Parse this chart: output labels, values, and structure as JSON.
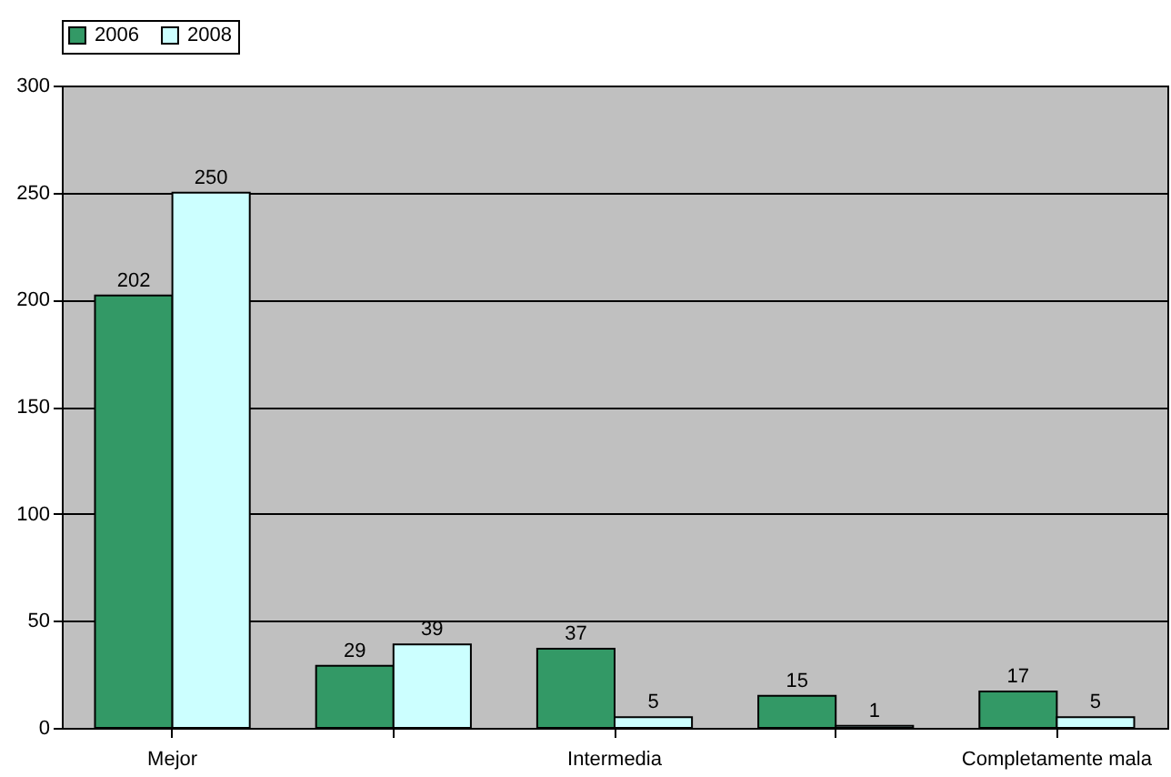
{
  "chart_data": {
    "type": "bar",
    "categories": [
      "Mejor",
      null,
      "Intermedia",
      null,
      "Completamente mala"
    ],
    "series": [
      {
        "name": "2006",
        "color": "#339966",
        "values": [
          202,
          29,
          37,
          15,
          17
        ]
      },
      {
        "name": "2008",
        "color": "#ccffff",
        "values": [
          250,
          39,
          5,
          1,
          5
        ]
      }
    ],
    "ylim": [
      0,
      300
    ],
    "yticks": [
      0,
      50,
      100,
      150,
      200,
      250,
      300
    ],
    "grid": "y",
    "legend": "top",
    "data_labels": true
  }
}
